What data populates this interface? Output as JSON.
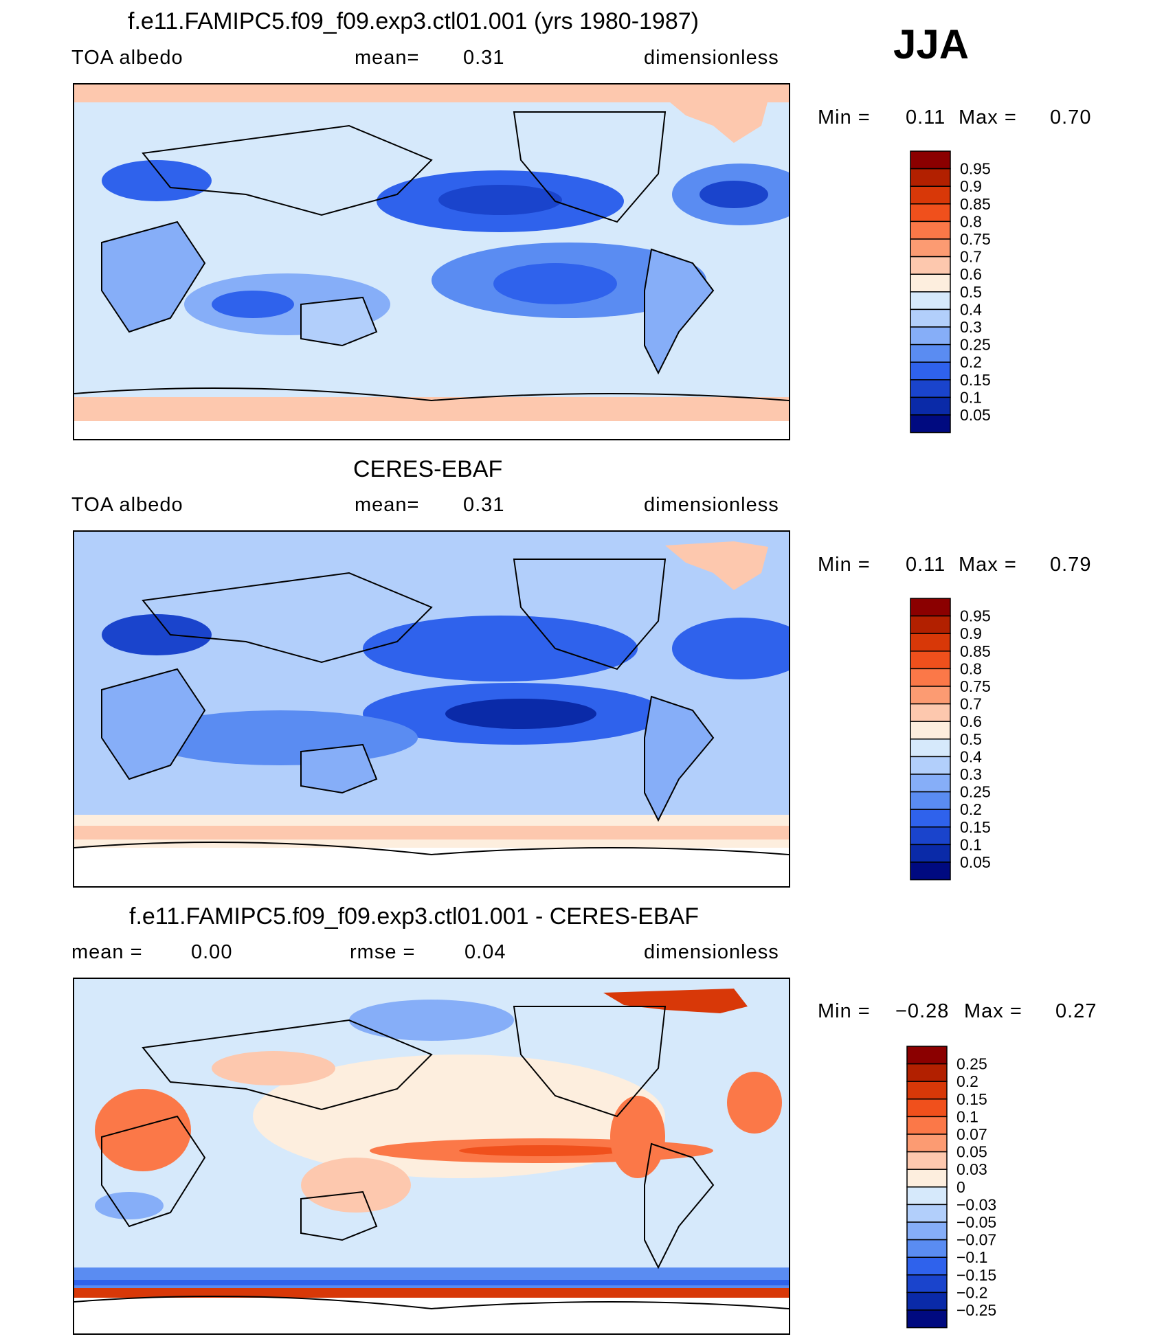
{
  "season": "JJA",
  "panels": [
    {
      "title": "f.e11.FAMIPC5.f09_f09.exp3.ctl01.001 (yrs 1980-1987)",
      "left_label": "TOA  albedo",
      "mid_label": "mean=",
      "mid_value": "0.31",
      "right_label": "dimensionless",
      "min_label": "Min  =",
      "min_value": "0.11",
      "max_label": "Max  =",
      "max_value": "0.70"
    },
    {
      "title": "CERES-EBAF",
      "left_label": "TOA  albedo",
      "mid_label": "mean=",
      "mid_value": "0.31",
      "right_label": "dimensionless",
      "min_label": "Min  =",
      "min_value": "0.11",
      "max_label": "Max  =",
      "max_value": "0.79"
    },
    {
      "title": "f.e11.FAMIPC5.f09_f09.exp3.ctl01.001 - CERES-EBAF",
      "left_label": "mean  =",
      "left_value": "0.00",
      "mid_label": "rmse  =",
      "mid_value": "0.04",
      "right_label": "dimensionless",
      "min_label": "Min  =",
      "min_value": "−0.28",
      "max_label": "Max  =",
      "max_value": "0.27"
    }
  ],
  "chart_data": [
    {
      "type": "heatmap",
      "title": "f.e11.FAMIPC5.f09_f09.exp3.ctl01.001 (yrs 1980-1987)",
      "variable": "TOA albedo",
      "units": "dimensionless",
      "mean": 0.31,
      "min": 0.11,
      "max": 0.7,
      "colorbar_levels": [
        "0.95",
        "0.9",
        "0.85",
        "0.8",
        "0.75",
        "0.7",
        "0.6",
        "0.5",
        "0.4",
        "0.3",
        "0.25",
        "0.2",
        "0.15",
        "0.1",
        "0.05"
      ],
      "colorbar_colors": [
        "#8b0000",
        "#b22000",
        "#d83808",
        "#f0501c",
        "#fb7848",
        "#fc9b72",
        "#fdc8ae",
        "#fdeede",
        "#d6e9fb",
        "#b2cffb",
        "#86aef8",
        "#5a8cf2",
        "#2f62ec",
        "#1a44cc",
        "#0a2aa8",
        "#000a80"
      ]
    },
    {
      "type": "heatmap",
      "title": "CERES-EBAF",
      "variable": "TOA albedo",
      "units": "dimensionless",
      "mean": 0.31,
      "min": 0.11,
      "max": 0.79,
      "colorbar_levels": [
        "0.95",
        "0.9",
        "0.85",
        "0.8",
        "0.75",
        "0.7",
        "0.6",
        "0.5",
        "0.4",
        "0.3",
        "0.25",
        "0.2",
        "0.15",
        "0.1",
        "0.05"
      ],
      "colorbar_colors": [
        "#8b0000",
        "#b22000",
        "#d83808",
        "#f0501c",
        "#fb7848",
        "#fc9b72",
        "#fdc8ae",
        "#fdeede",
        "#d6e9fb",
        "#b2cffb",
        "#86aef8",
        "#5a8cf2",
        "#2f62ec",
        "#1a44cc",
        "#0a2aa8",
        "#000a80"
      ]
    },
    {
      "type": "heatmap",
      "title": "f.e11.FAMIPC5.f09_f09.exp3.ctl01.001 - CERES-EBAF",
      "units": "dimensionless",
      "mean": 0.0,
      "rmse": 0.04,
      "min": -0.28,
      "max": 0.27,
      "colorbar_levels": [
        "0.25",
        "0.2",
        "0.15",
        "0.1",
        "0.07",
        "0.05",
        "0.03",
        "0",
        "−0.03",
        "−0.05",
        "−0.07",
        "−0.1",
        "−0.15",
        "−0.2",
        "−0.25"
      ],
      "colorbar_colors": [
        "#8b0000",
        "#b22000",
        "#d83808",
        "#f0501c",
        "#fb7848",
        "#fc9b72",
        "#fdc8ae",
        "#fdeede",
        "#d6e9fb",
        "#b2cffb",
        "#86aef8",
        "#5a8cf2",
        "#2f62ec",
        "#1a44cc",
        "#0a2aa8",
        "#000a80"
      ]
    }
  ]
}
